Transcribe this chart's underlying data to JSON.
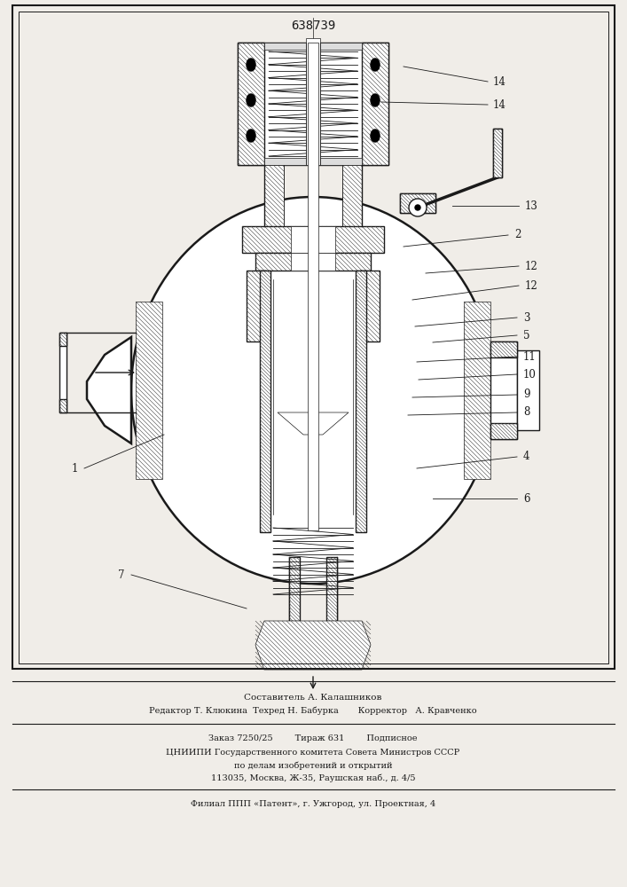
{
  "patent_number": "638739",
  "bg_color": "#f0ede8",
  "line_color": "#1a1a1a",
  "hatch_color": "#444444",
  "text_sestavitel": "Составитель А. Калашников",
  "text_editor": "Редактор Т. Клюкина  Техред Н. Бабурка       Корректор   А. Кравченко",
  "text_zakaz": "Заказ 7250/25        Тираж 631        Подписное",
  "text_cniipi": "ЦНИИПИ Государственного комитета Совета Министров СССР",
  "text_dela": "по делам изобретений и открытий",
  "text_address": "113035, Москва, Ж-35, Раушская наб., д. 4/5",
  "text_filial": "Филиал ППП «Патент», г. Ужгород, ул. Проектная, 4"
}
